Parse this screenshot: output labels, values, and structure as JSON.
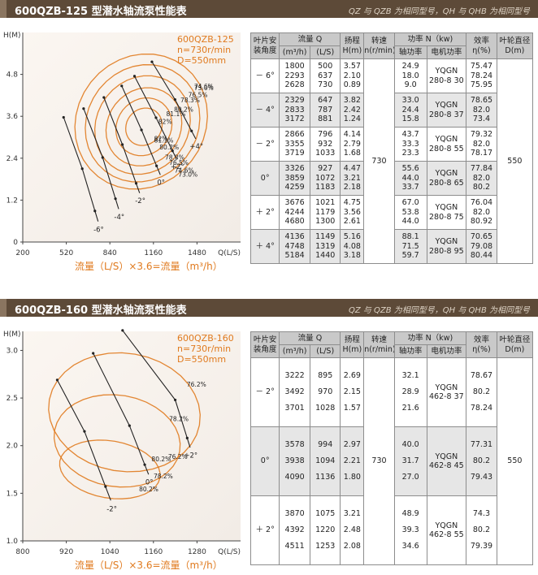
{
  "charts": [
    {
      "header": {
        "title": "600QZB-125 型潜水轴流泵性能表",
        "note": "QZ 与 QZB 为相同型号，QH 与 QHB 为相同型号"
      },
      "chart_data": {
        "type": "line",
        "legend": [
          "600QZB-125",
          "n=730r/min",
          "D=550mm"
        ],
        "ylabel": "H(M)",
        "xlabel": "Q(L/S)",
        "bottom_label": "流量（L/S）×3.6=流量（m³/h）",
        "xlim": [
          200,
          1800
        ],
        "ylim": [
          0,
          6
        ],
        "xticks": [
          200,
          520,
          840,
          1160,
          1480
        ],
        "yticks": [
          0,
          1.2,
          2.4,
          3.6,
          4.8
        ],
        "series": [
          {
            "name": "-6°",
            "x": [
              500,
              637,
              730
            ],
            "y": [
              3.57,
              2.1,
              0.89
            ]
          },
          {
            "name": "-4°",
            "x": [
              647,
              787,
              881
            ],
            "y": [
              3.82,
              2.42,
              1.24
            ]
          },
          {
            "name": "-2°",
            "x": [
              796,
              932,
              1033
            ],
            "y": [
              4.14,
              2.79,
              1.68
            ]
          },
          {
            "name": "0°",
            "x": [
              927,
              1072,
              1183
            ],
            "y": [
              4.47,
              3.21,
              2.18
            ]
          },
          {
            "name": "+2°",
            "x": [
              1021,
              1179,
              1300
            ],
            "y": [
              4.75,
              3.56,
              2.61
            ]
          },
          {
            "name": "+4°",
            "x": [
              1149,
              1319,
              1440
            ],
            "y": [
              5.16,
              4.08,
              3.18
            ]
          }
        ],
        "contour_labels": [
          "73.0%",
          "74.6%",
          "76.5%",
          "78.3%",
          "80.2%",
          "81.1%",
          "82%",
          "82%",
          "81.1%",
          "80.2%",
          "78.3%",
          "76.5%",
          "74.6%",
          "73.0%"
        ],
        "blade_labels": [
          "-6°",
          "-4°",
          "-2°",
          "0°",
          "+2°",
          "+4°"
        ]
      },
      "table": {
        "headers": {
          "angle": "叶片安装角度",
          "flow": "流量 Q",
          "flow_m3h": "(m³/h)",
          "flow_ls": "(L/S)",
          "head": "扬程H(m)",
          "speed": "转速n(r/min)",
          "power": "功率 N（kw)",
          "shaft_power": "轴功率",
          "motor_power": "电机功率",
          "efficiency": "效率η(%)",
          "diameter": "叶轮直径D(m)"
        },
        "speed": "730",
        "diameter": "550",
        "groups": [
          {
            "angle": "－ 6°",
            "m3h": [
              "1800",
              "2293",
              "2628"
            ],
            "ls": [
              "500",
              "637",
              "730"
            ],
            "head": [
              "3.57",
              "2.10",
              "0.89"
            ],
            "shaft": [
              "24.9",
              "18.0",
              "9.0"
            ],
            "motor": "YQGN 280-8 30",
            "eff": [
              "75.47",
              "78.24",
              "75.95"
            ]
          },
          {
            "angle": "－ 4°",
            "m3h": [
              "2329",
              "2833",
              "3172"
            ],
            "ls": [
              "647",
              "787",
              "881"
            ],
            "head": [
              "3.82",
              "2.42",
              "1.24"
            ],
            "shaft": [
              "33.0",
              "24.4",
              "15.8"
            ],
            "motor": "YQGN 280-8 37",
            "eff": [
              "78.65",
              "82.0",
              "73.4"
            ]
          },
          {
            "angle": "－ 2°",
            "m3h": [
              "2866",
              "3355",
              "3719"
            ],
            "ls": [
              "796",
              "932",
              "1033"
            ],
            "head": [
              "4.14",
              "2.79",
              "1.68"
            ],
            "shaft": [
              "43.7",
              "33.3",
              "23.3"
            ],
            "motor": "YQGN 280-8 55",
            "eff": [
              "79.32",
              "82.0",
              "78.17"
            ]
          },
          {
            "angle": "0°",
            "m3h": [
              "3326",
              "3859",
              "4259"
            ],
            "ls": [
              "927",
              "1072",
              "1183"
            ],
            "head": [
              "4.47",
              "3.21",
              "2.18"
            ],
            "shaft": [
              "55.6",
              "44.0",
              "33.7"
            ],
            "motor": "YQGN 280-8 65",
            "eff": [
              "77.84",
              "82.0",
              "80.2"
            ]
          },
          {
            "angle": "＋ 2°",
            "m3h": [
              "3676",
              "4244",
              "4680"
            ],
            "ls": [
              "1021",
              "1179",
              "1300"
            ],
            "head": [
              "4.75",
              "3.56",
              "2.61"
            ],
            "shaft": [
              "67.0",
              "53.8",
              "44.0"
            ],
            "motor": "YQGN 280-8 75",
            "eff": [
              "76.04",
              "82.0",
              "80.92"
            ]
          },
          {
            "angle": "＋ 4°",
            "m3h": [
              "4136",
              "4748",
              "5184"
            ],
            "ls": [
              "1149",
              "1319",
              "1440"
            ],
            "head": [
              "5.16",
              "4.08",
              "3.18"
            ],
            "shaft": [
              "88.1",
              "71.5",
              "59.7"
            ],
            "motor": "YQGN 280-8 95",
            "eff": [
              "70.65",
              "79.08",
              "80.44"
            ]
          }
        ]
      }
    },
    {
      "header": {
        "title": "600QZB-160 型潜水轴流泵性能表",
        "note": "QZ 与 QZB 为相同型号，QH 与 QHB 为相同型号"
      },
      "chart_data": {
        "type": "line",
        "legend": [
          "600QZB-160",
          "n=730r/min",
          "D=550mm"
        ],
        "ylabel": "H(M)",
        "xlabel": "Q(L/S)",
        "bottom_label": "流量（L/S）×3.6=流量（m³/h）",
        "xlim": [
          800,
          1400
        ],
        "ylim": [
          1.0,
          3.2
        ],
        "xticks": [
          800,
          920,
          1040,
          1160,
          1280
        ],
        "yticks": [
          1.0,
          1.5,
          2.0,
          2.5,
          3.0
        ],
        "series": [
          {
            "name": "-2°",
            "x": [
              895,
              970,
              1028
            ],
            "y": [
              2.69,
              2.15,
              1.57
            ]
          },
          {
            "name": "0°",
            "x": [
              994,
              1094,
              1136
            ],
            "y": [
              2.97,
              2.21,
              1.8
            ]
          },
          {
            "name": "+2°",
            "x": [
              1075,
              1220,
              1253
            ],
            "y": [
              3.21,
              2.48,
              2.08
            ]
          }
        ],
        "contour_labels": [
          "76.2%",
          "78.2%",
          "80.2%",
          "80.2%",
          "78.2%",
          "76.2%"
        ],
        "blade_labels": [
          "-2°",
          "0°",
          "+2°"
        ]
      },
      "table": {
        "headers": {
          "angle": "叶片安装角度",
          "flow": "流量 Q",
          "flow_m3h": "(m³/h)",
          "flow_ls": "(L/S)",
          "head": "扬程H(m)",
          "speed": "转速n(r/min)",
          "power": "功率 N（kw)",
          "shaft_power": "轴功率",
          "motor_power": "电机功率",
          "efficiency": "效率η(%)",
          "diameter": "叶轮直径D(m)"
        },
        "speed": "730",
        "diameter": "550",
        "groups": [
          {
            "angle": "－ 2°",
            "m3h": [
              "3222",
              "3492",
              "3701"
            ],
            "ls": [
              "895",
              "970",
              "1028"
            ],
            "head": [
              "2.69",
              "2.15",
              "1.57"
            ],
            "shaft": [
              "32.1",
              "28.9",
              "21.6"
            ],
            "motor": "YQGN 462-8 37",
            "eff": [
              "78.67",
              "80.2",
              "78.24"
            ]
          },
          {
            "angle": "0°",
            "m3h": [
              "3578",
              "3938",
              "4090"
            ],
            "ls": [
              "994",
              "1094",
              "1136"
            ],
            "head": [
              "2.97",
              "2.21",
              "1.80"
            ],
            "shaft": [
              "40.0",
              "31.7",
              "27.0"
            ],
            "motor": "YQGN 462-8 45",
            "eff": [
              "77.31",
              "80.2",
              "79.43"
            ]
          },
          {
            "angle": "＋ 2°",
            "m3h": [
              "3870",
              "4392",
              "4511"
            ],
            "ls": [
              "1075",
              "1220",
              "1253"
            ],
            "head": [
              "3.21",
              "2.48",
              "2.08"
            ],
            "shaft": [
              "48.9",
              "39.3",
              "34.6"
            ],
            "motor": "YQGN 462-8 55",
            "eff": [
              "74.3",
              "80.2",
              "79.39"
            ]
          }
        ]
      }
    }
  ],
  "style": {
    "orange": "#e07a1e",
    "header_bg": "#5d4a38",
    "header_text": "#ffffff",
    "note_text": "#ddd2c4"
  }
}
